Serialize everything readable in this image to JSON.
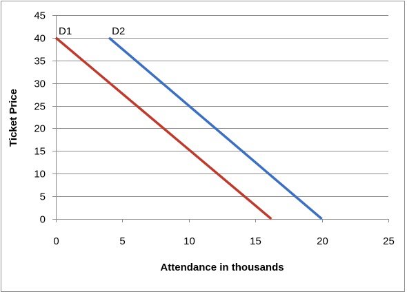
{
  "chart_data": {
    "type": "line",
    "title": "",
    "xlabel": "Attendance in thousands",
    "ylabel": "Ticket Price",
    "xlim": [
      0,
      25
    ],
    "ylim": [
      0,
      45
    ],
    "xticks": [
      0,
      5,
      10,
      15,
      20,
      25
    ],
    "yticks": [
      0,
      5,
      10,
      15,
      20,
      25,
      30,
      35,
      40,
      45
    ],
    "grid": "horizontal",
    "legend": "none",
    "series": [
      {
        "name": "D1",
        "color": "#c0392b",
        "x": [
          0,
          16.2
        ],
        "y": [
          40,
          0
        ]
      },
      {
        "name": "D2",
        "color": "#3a6fc4",
        "x": [
          4,
          20
        ],
        "y": [
          40,
          0
        ]
      }
    ]
  }
}
